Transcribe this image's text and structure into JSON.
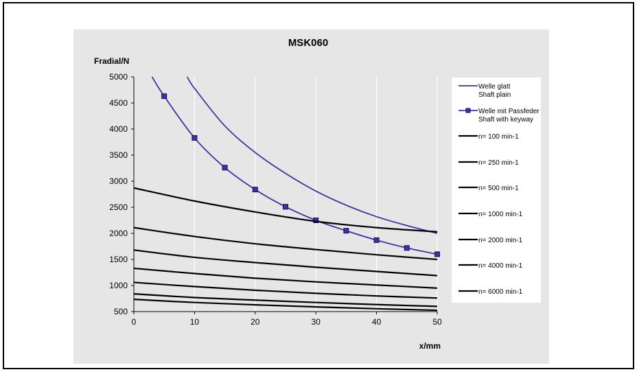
{
  "chart_data": {
    "type": "line",
    "title": "MSK060",
    "ylabel": "Fradial/N",
    "xlabel": "x/mm",
    "xlim": [
      0,
      50
    ],
    "ylim": [
      500,
      5000
    ],
    "x_ticks": [
      "0",
      "10",
      "20",
      "30",
      "40",
      "50"
    ],
    "y_ticks": [
      "500",
      "1000",
      "1500",
      "2000",
      "2500",
      "3000",
      "3500",
      "4000",
      "4500",
      "5000"
    ],
    "grid": "vertical",
    "legend_position": "right",
    "series": [
      {
        "name": "Welle glatt",
        "name2": "Shaft plain",
        "color": "#3b33a0",
        "marker": "none",
        "x": [
          8.8,
          10,
          15,
          20,
          25,
          30,
          35,
          40,
          45,
          50
        ],
        "y": [
          5000,
          4780,
          4060,
          3550,
          3150,
          2810,
          2540,
          2320,
          2150,
          2000
        ]
      },
      {
        "name": "Welle mit Passfeder",
        "name2": "Shaft with keyway",
        "color": "#3b33a0",
        "marker": "square",
        "x": [
          3,
          5,
          10,
          15,
          20,
          25,
          30,
          35,
          40,
          45,
          50
        ],
        "y": [
          5000,
          4630,
          3830,
          3260,
          2840,
          2510,
          2250,
          2050,
          1870,
          1720,
          1600
        ]
      },
      {
        "name": "n= 100 min-1",
        "color": "#000000",
        "marker": "none",
        "x": [
          0,
          10,
          20,
          30,
          40,
          50
        ],
        "y": [
          2870,
          2620,
          2410,
          2230,
          2110,
          2030
        ]
      },
      {
        "name": "n= 250 min-1",
        "color": "#000000",
        "marker": "none",
        "x": [
          0,
          10,
          20,
          30,
          40,
          50
        ],
        "y": [
          2110,
          1940,
          1800,
          1690,
          1590,
          1500
        ]
      },
      {
        "name": "n= 500 min-1",
        "color": "#000000",
        "marker": "none",
        "x": [
          0,
          10,
          20,
          30,
          40,
          50
        ],
        "y": [
          1680,
          1540,
          1440,
          1350,
          1270,
          1190
        ]
      },
      {
        "name": "n= 1000 min-1",
        "color": "#000000",
        "marker": "none",
        "x": [
          0,
          10,
          20,
          30,
          40,
          50
        ],
        "y": [
          1330,
          1230,
          1140,
          1070,
          1010,
          950
        ]
      },
      {
        "name": "n= 2000 min-1",
        "color": "#000000",
        "marker": "none",
        "x": [
          0,
          10,
          20,
          30,
          40,
          50
        ],
        "y": [
          1060,
          980,
          910,
          850,
          800,
          760
        ]
      },
      {
        "name": "n= 4000 min-1",
        "color": "#000000",
        "marker": "none",
        "x": [
          0,
          10,
          20,
          30,
          40,
          50
        ],
        "y": [
          840,
          770,
          720,
          675,
          635,
          600
        ]
      },
      {
        "name": "n= 6000 min-1",
        "color": "#000000",
        "marker": "none",
        "x": [
          0,
          10,
          20,
          30,
          40,
          50
        ],
        "y": [
          735,
          675,
          630,
          590,
          555,
          525
        ]
      }
    ]
  }
}
